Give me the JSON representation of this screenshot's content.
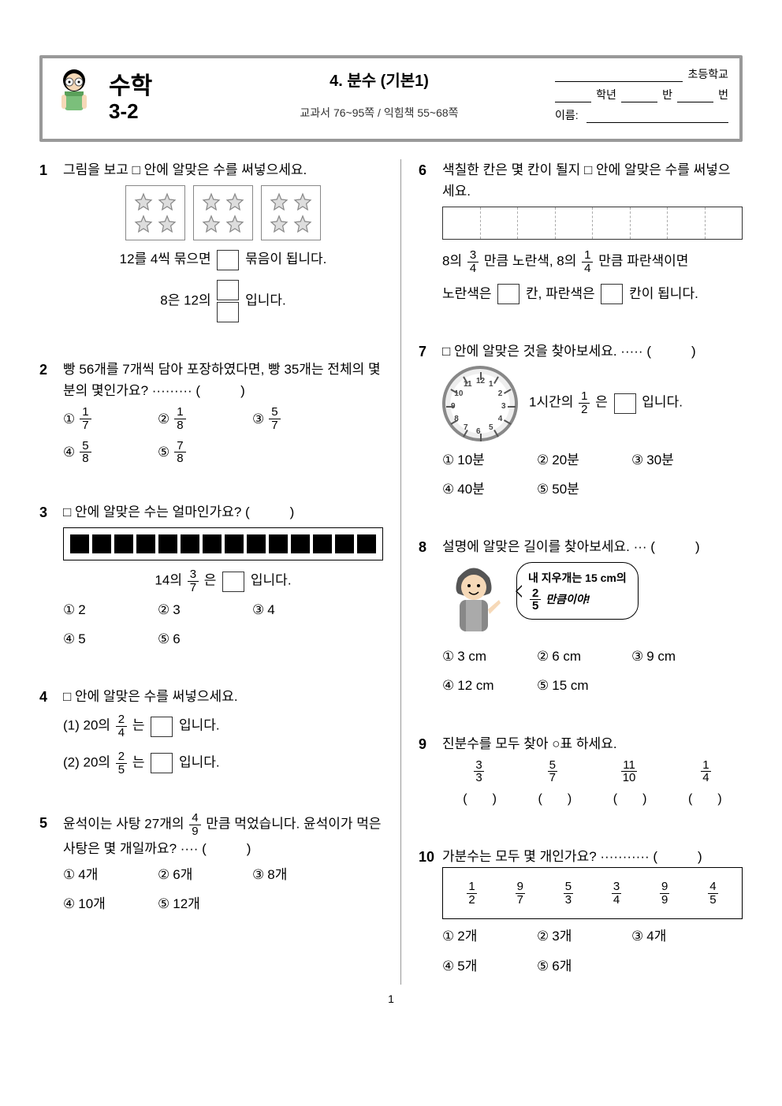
{
  "header": {
    "subject": "수학",
    "grade": "3-2",
    "unit_title": "4. 분수 (기본1)",
    "page_ref": "교과서 76~95쪽 / 익힘책 55~68쪽",
    "school_label": "초등학교",
    "grade_label": "학년",
    "class_label": "반",
    "number_label": "번",
    "name_label": "이름:"
  },
  "q1": {
    "num": "1",
    "text": "그림을 보고 □ 안에 알맞은 수를 써넣으세요.",
    "line1_a": "12를 4씩 묶으면",
    "line1_b": "묶음이 됩니다.",
    "line2_a": "8은 12의",
    "line2_b": "입니다."
  },
  "q2": {
    "num": "2",
    "text_a": "빵 56개를 7개씩 담아 포장하였다면, 빵 35개는 전체의 몇 분의 몇인가요? ········· (　　　)",
    "c1": {
      "n": "1",
      "d": "7"
    },
    "c2": {
      "n": "1",
      "d": "8"
    },
    "c3": {
      "n": "5",
      "d": "7"
    },
    "c4": {
      "n": "5",
      "d": "8"
    },
    "c5": {
      "n": "7",
      "d": "8"
    }
  },
  "q3": {
    "num": "3",
    "text": "□ 안에 알맞은 수는 얼마인가요? (　　　)",
    "mid_a": "14의",
    "mid_frac": {
      "n": "3",
      "d": "7"
    },
    "mid_b": "은",
    "mid_c": "입니다.",
    "c1": "2",
    "c2": "3",
    "c3": "4",
    "c4": "5",
    "c5": "6"
  },
  "q4": {
    "num": "4",
    "text": "□ 안에 알맞은 수를 써넣으세요.",
    "l1_a": "(1) 20의",
    "l1_frac": {
      "n": "2",
      "d": "4"
    },
    "l1_b": "는",
    "l1_c": "입니다.",
    "l2_a": "(2) 20의",
    "l2_frac": {
      "n": "2",
      "d": "5"
    },
    "l2_b": "는",
    "l2_c": "입니다."
  },
  "q5": {
    "num": "5",
    "text_a": "윤석이는 사탕 27개의",
    "frac": {
      "n": "4",
      "d": "9"
    },
    "text_b": "만큼 먹었습니다. 윤석이가 먹은 사탕은 몇 개일까요? ···· (　　　)",
    "c1": "4개",
    "c2": "6개",
    "c3": "8개",
    "c4": "10개",
    "c5": "12개"
  },
  "q6": {
    "num": "6",
    "text": "색칠한 칸은 몇 칸이 될지 □ 안에 알맞은 수를 써넣으세요.",
    "l1_a": "8의",
    "f1": {
      "n": "3",
      "d": "4"
    },
    "l1_b": "만큼 노란색, 8의",
    "f2": {
      "n": "1",
      "d": "4"
    },
    "l1_c": "만큼 파란색이면",
    "l2_a": "노란색은",
    "l2_b": "칸, 파란색은",
    "l2_c": "칸이 됩니다."
  },
  "q7": {
    "num": "7",
    "text": "□ 안에 알맞은 것을 찾아보세요. ····· (　　　)",
    "mid_a": "1시간의",
    "frac": {
      "n": "1",
      "d": "2"
    },
    "mid_b": "은",
    "mid_c": "입니다.",
    "c1": "10분",
    "c2": "20분",
    "c3": "30분",
    "c4": "40분",
    "c5": "50분"
  },
  "q8": {
    "num": "8",
    "text": "설명에 알맞은 길이를 찾아보세요. ··· (　　　)",
    "bubble_a": "내 지우개는 15 cm의",
    "bubble_frac": {
      "n": "2",
      "d": "5"
    },
    "bubble_b": "만큼이야!",
    "c1": "3 cm",
    "c2": "6 cm",
    "c3": "9 cm",
    "c4": "12 cm",
    "c5": "15 cm"
  },
  "q9": {
    "num": "9",
    "text": "진분수를 모두 찾아 ○표 하세요.",
    "fracs": [
      {
        "n": "3",
        "d": "3"
      },
      {
        "n": "5",
        "d": "7"
      },
      {
        "n": "11",
        "d": "10"
      },
      {
        "n": "1",
        "d": "4"
      }
    ],
    "paren": "(　　)"
  },
  "q10": {
    "num": "10",
    "text": "가분수는 모두 몇 개인가요? ··········· (　　　)",
    "fracs": [
      {
        "n": "1",
        "d": "2"
      },
      {
        "n": "9",
        "d": "7"
      },
      {
        "n": "5",
        "d": "3"
      },
      {
        "n": "3",
        "d": "4"
      },
      {
        "n": "9",
        "d": "9"
      },
      {
        "n": "4",
        "d": "5"
      }
    ],
    "c1": "2개",
    "c2": "3개",
    "c3": "4개",
    "c4": "5개",
    "c5": "6개"
  },
  "circled": [
    "①",
    "②",
    "③",
    "④",
    "⑤"
  ],
  "page_number": "1"
}
